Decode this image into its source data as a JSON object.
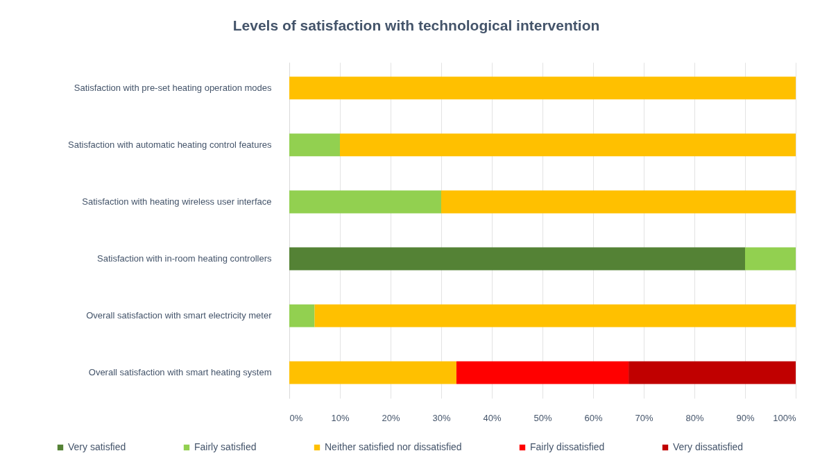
{
  "chart_data": {
    "type": "bar",
    "orientation": "horizontal",
    "stacked": true,
    "title": "Levels of satisfaction with technological intervention",
    "categories": [
      "Satisfaction with pre-set heating operation modes",
      "Satisfaction with automatic heating control features",
      "Satisfaction with heating wireless user interface",
      "Satisfaction with in-room heating controllers",
      "Overall satisfaction with smart electricity meter",
      "Overall satisfaction with smart heating system"
    ],
    "series": [
      {
        "name": "Very satisfied",
        "color": "#548235",
        "values": [
          null,
          null,
          null,
          90,
          null,
          null
        ]
      },
      {
        "name": "Fairly satisfied",
        "color": "#92d050",
        "values": [
          null,
          10,
          30,
          10,
          5,
          null
        ]
      },
      {
        "name": "Neither satisfied nor dissatisfied",
        "color": "#ffc000",
        "values": [
          100,
          90,
          70,
          null,
          95,
          33
        ]
      },
      {
        "name": "Fairly dissatisfied",
        "color": "#ff0000",
        "values": [
          null,
          null,
          null,
          null,
          null,
          34
        ]
      },
      {
        "name": "Very dissatisfied",
        "color": "#c00000",
        "values": [
          null,
          null,
          null,
          null,
          null,
          33
        ]
      }
    ],
    "xlim": [
      0,
      100
    ],
    "xticks": [
      {
        "value": 0,
        "label": "0%"
      },
      {
        "value": 10,
        "label": "10%"
      },
      {
        "value": 20,
        "label": "20%"
      },
      {
        "value": 30,
        "label": "30%"
      },
      {
        "value": 40,
        "label": "40%"
      },
      {
        "value": 50,
        "label": "50%"
      },
      {
        "value": 60,
        "label": "60%"
      },
      {
        "value": 70,
        "label": "70%"
      },
      {
        "value": 80,
        "label": "80%"
      },
      {
        "value": 90,
        "label": "90%"
      },
      {
        "value": 100,
        "label": "100%"
      }
    ],
    "grid": "x",
    "legend": "bottom"
  }
}
